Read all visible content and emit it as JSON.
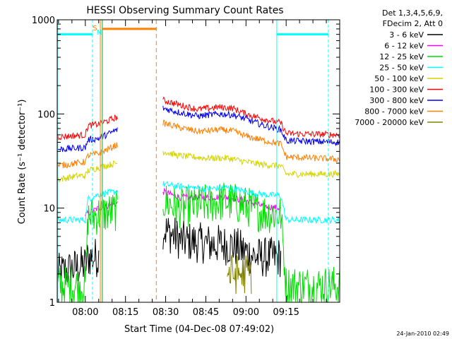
{
  "chart_data": {
    "type": "line",
    "title": "HESSI Observing Summary Count Rates",
    "xlabel": "Start Time (04-Dec-08 07:49:02)",
    "ylabel": "Count Rate (s⁻¹ detector⁻¹)",
    "y_scale": "log",
    "ylim": [
      1,
      1000
    ],
    "xlim_minutes_after_08_00": [
      -10.5,
      95
    ],
    "x_tick_labels": [
      "08:00",
      "08:15",
      "08:30",
      "08:45",
      "09:00",
      "09:15"
    ],
    "y_tick_labels": [
      "1",
      "10",
      "100",
      "1000"
    ],
    "legend_header": [
      "Det 1,3,4,5,6,9,",
      "FDecim 2, Att 0"
    ],
    "legend_placement": "right",
    "date_stamp": "24-Jan-2010 02:49",
    "flags": {
      "S": "S",
      "N": "N"
    },
    "colors": {
      "3-6": "#000000",
      "6-12": "#ff00ff",
      "12-25": "#00dd00",
      "25-50": "#00ffff",
      "50-100": "#d4d400",
      "100-300": "#ff0000",
      "300-800": "#0000ee",
      "800-7000": "#ff7f00",
      "7000-20000": "#808000",
      "saa_flag": "#00ffff",
      "night_flag": "#ff7f00"
    },
    "series": [
      {
        "name": "3 - 6 keV",
        "key": "3-6",
        "points": [
          [
            -10.5,
            2
          ],
          [
            0,
            2.5
          ],
          [
            1,
            3
          ],
          [
            5,
            3
          ],
          [
            12,
            0
          ],
          [
            29,
            6
          ],
          [
            36,
            4.5
          ],
          [
            45,
            4.2
          ],
          [
            55,
            4
          ],
          [
            61,
            3.3
          ],
          [
            64,
            3
          ],
          [
            73,
            3
          ],
          [
            95,
            0
          ]
        ]
      },
      {
        "name": "6 - 12 keV",
        "key": "6-12",
        "points": [
          [
            -10.5,
            0
          ],
          [
            0,
            8.5
          ],
          [
            5,
            10
          ],
          [
            29,
            15
          ],
          [
            35,
            13
          ],
          [
            45,
            13
          ],
          [
            52,
            13.2
          ],
          [
            60,
            12
          ],
          [
            66,
            10.5
          ],
          [
            73,
            10
          ],
          [
            95,
            0
          ]
        ]
      },
      {
        "name": "12 - 25 keV",
        "key": "12-25",
        "points": [
          [
            -10.5,
            1.5
          ],
          [
            0,
            1.5
          ],
          [
            1,
            8
          ],
          [
            5,
            8.5
          ],
          [
            29,
            12
          ],
          [
            35,
            10
          ],
          [
            45,
            11
          ],
          [
            52,
            12
          ],
          [
            60,
            10.5
          ],
          [
            66,
            9
          ],
          [
            73,
            8.5
          ],
          [
            75,
            1.5
          ],
          [
            95,
            1.5
          ]
        ]
      },
      {
        "name": "25 - 50 keV",
        "key": "25-50",
        "points": [
          [
            -10.5,
            7.5
          ],
          [
            0,
            7.5
          ],
          [
            1,
            12.5
          ],
          [
            5,
            14
          ],
          [
            29,
            18
          ],
          [
            35,
            17
          ],
          [
            45,
            16
          ],
          [
            53,
            16.5
          ],
          [
            60,
            15
          ],
          [
            66,
            14
          ],
          [
            73,
            13.5
          ],
          [
            75,
            7.5
          ],
          [
            95,
            7.5
          ]
        ]
      },
      {
        "name": "50 - 100 keV",
        "key": "50-100",
        "points": [
          [
            -10.5,
            20
          ],
          [
            -3,
            22
          ],
          [
            0,
            22
          ],
          [
            1,
            25
          ],
          [
            5,
            27
          ],
          [
            29,
            40
          ],
          [
            35,
            36
          ],
          [
            45,
            34
          ],
          [
            53,
            34
          ],
          [
            60,
            31
          ],
          [
            66,
            29
          ],
          [
            73,
            28
          ],
          [
            75,
            23
          ],
          [
            95,
            23
          ]
        ]
      },
      {
        "name": "100 - 300 keV",
        "key": "100-300",
        "points": [
          [
            -10.5,
            57
          ],
          [
            0,
            60
          ],
          [
            1,
            75
          ],
          [
            5,
            78
          ],
          [
            29,
            140
          ],
          [
            35,
            125
          ],
          [
            42,
            112
          ],
          [
            50,
            118
          ],
          [
            55,
            115
          ],
          [
            60,
            100
          ],
          [
            67,
            88
          ],
          [
            73,
            80
          ],
          [
            75,
            62
          ],
          [
            95,
            60
          ]
        ]
      },
      {
        "name": "300 - 800 keV",
        "key": "300-800",
        "points": [
          [
            -10.5,
            42
          ],
          [
            0,
            44
          ],
          [
            1,
            53
          ],
          [
            5,
            55
          ],
          [
            29,
            115
          ],
          [
            35,
            104
          ],
          [
            42,
            95
          ],
          [
            50,
            100
          ],
          [
            55,
            98
          ],
          [
            60,
            88
          ],
          [
            67,
            75
          ],
          [
            73,
            68
          ],
          [
            75,
            52
          ],
          [
            95,
            50
          ]
        ]
      },
      {
        "name": "800 - 7000 keV",
        "key": "800-7000",
        "points": [
          [
            -10.5,
            28
          ],
          [
            0,
            31
          ],
          [
            1,
            36
          ],
          [
            5,
            38
          ],
          [
            29,
            80
          ],
          [
            35,
            72
          ],
          [
            42,
            65
          ],
          [
            50,
            68
          ],
          [
            55,
            66
          ],
          [
            60,
            58
          ],
          [
            67,
            52
          ],
          [
            73,
            48
          ],
          [
            75,
            35
          ],
          [
            95,
            33
          ]
        ]
      },
      {
        "name": "7000 - 20000 keV",
        "key": "7000-20000",
        "points": [
          [
            53,
            2
          ],
          [
            62,
            2
          ]
        ]
      }
    ]
  }
}
